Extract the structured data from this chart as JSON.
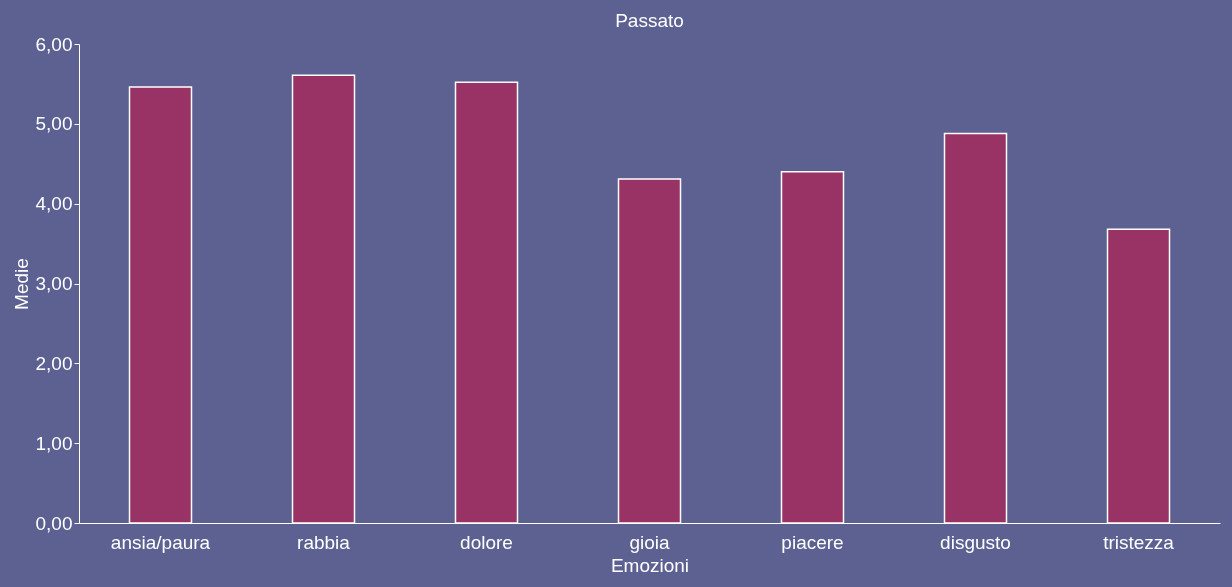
{
  "chart_data": {
    "type": "bar",
    "title": "Passato",
    "xlabel": "Emozioni",
    "ylabel": "Medie",
    "categories": [
      "ansia/paura",
      "rabbia",
      "dolore",
      "gioia",
      "piacere",
      "disgusto",
      "tristezza"
    ],
    "values": [
      5.46,
      5.61,
      5.52,
      4.31,
      4.4,
      4.88,
      3.68
    ],
    "color": "#993366",
    "ylim": [
      0,
      6
    ],
    "yticks": [
      {
        "value": 0,
        "label": "0,00"
      },
      {
        "value": 1,
        "label": "1,00"
      },
      {
        "value": 2,
        "label": "2,00"
      },
      {
        "value": 3,
        "label": "3,00"
      },
      {
        "value": 4,
        "label": "4,00"
      },
      {
        "value": 5,
        "label": "5,00"
      },
      {
        "value": 6,
        "label": "6,00"
      }
    ],
    "grid": false
  }
}
